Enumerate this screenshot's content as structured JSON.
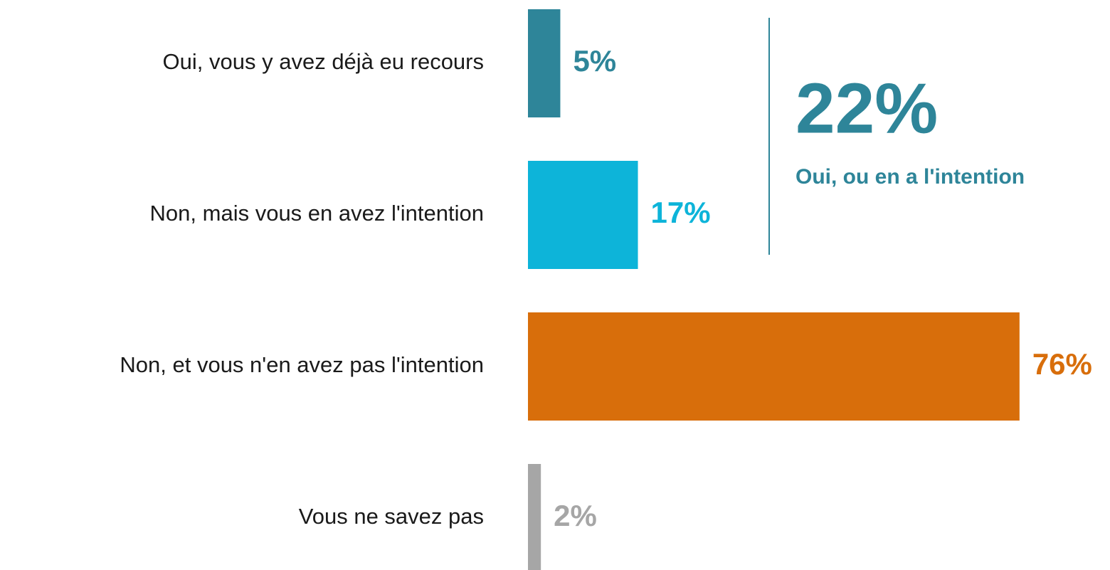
{
  "chart_data": {
    "type": "bar",
    "orientation": "horizontal",
    "categories": [
      "Oui, vous y avez déjà eu recours",
      "Non, mais vous en avez l'intention",
      "Non, et vous n'en avez pas l'intention",
      "Vous ne savez pas"
    ],
    "values": [
      5,
      17,
      76,
      2
    ],
    "value_labels": [
      "5%",
      "17%",
      "76%",
      "2%"
    ],
    "colors": [
      "#2e8599",
      "#0db4d9",
      "#d86e0b",
      "#a6a6a6"
    ],
    "annotation": {
      "label": "22%",
      "text": "Oui, ou en a l'intention",
      "color": "#2e8599"
    }
  }
}
